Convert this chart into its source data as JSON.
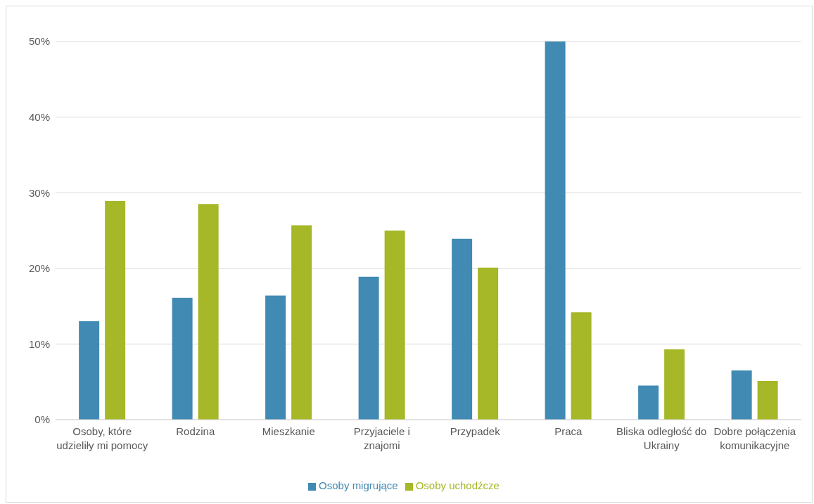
{
  "chart_data": {
    "type": "bar",
    "categories": [
      "Osoby, które udzieliły mi pomocy",
      "Rodzina",
      "Mieszkanie",
      "Przyjaciele i znajomi",
      "Przypadek",
      "Praca",
      "Bliska odległość do Ukrainy",
      "Dobre połączenia komunikacyjne"
    ],
    "series": [
      {
        "name": "Osoby migrujące",
        "color": "#418ab3",
        "values": [
          13.0,
          16.1,
          16.4,
          18.9,
          23.9,
          50.0,
          4.5,
          6.5
        ]
      },
      {
        "name": "Osoby uchodźcze",
        "color": "#a6b727",
        "values": [
          28.9,
          28.5,
          25.7,
          25.0,
          20.1,
          14.2,
          9.3,
          5.1
        ]
      }
    ],
    "ylim": [
      0,
      50
    ],
    "yticks": [
      {
        "value": 0,
        "label": "0%"
      },
      {
        "value": 10,
        "label": "10%"
      },
      {
        "value": 20,
        "label": "20%"
      },
      {
        "value": 30,
        "label": "30%"
      },
      {
        "value": 40,
        "label": "40%"
      },
      {
        "value": 50,
        "label": "50%"
      }
    ],
    "grid": "y",
    "legend": "bottom"
  }
}
